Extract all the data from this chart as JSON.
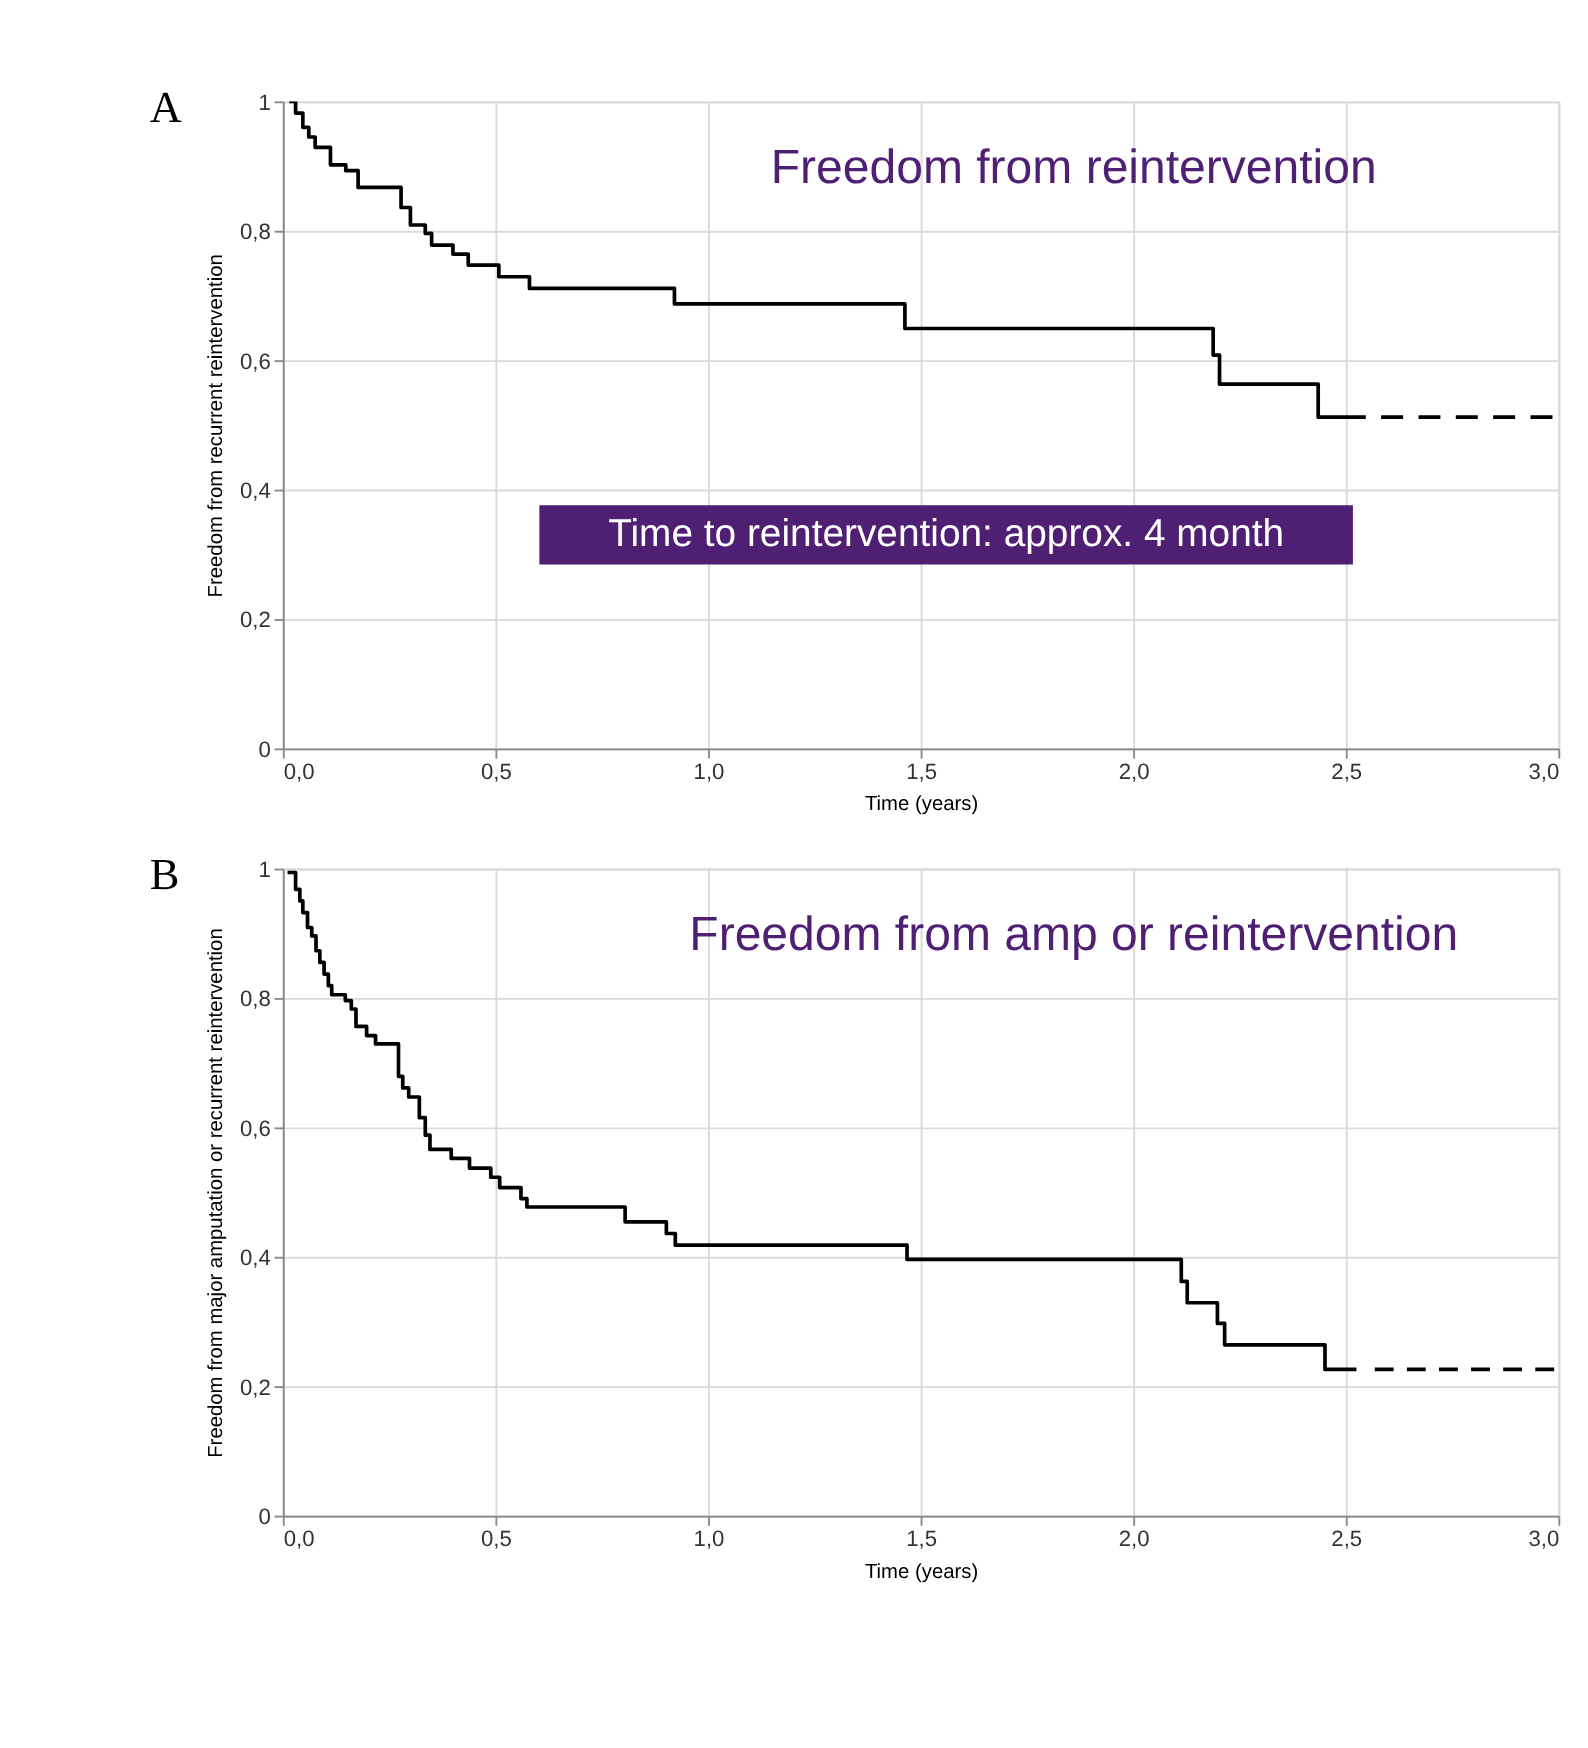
{
  "chart_data": [
    {
      "type": "step",
      "title": "Freedom from reintervention",
      "ylabel": "Freedom from recurrent reintervention",
      "xlabel": "Time (years)",
      "annotations": [
        "A",
        "Time to reintervention: approx. 4 month"
      ],
      "xlim": [
        0,
        3
      ],
      "xticks": [
        {
          "value": 0,
          "label": "0,0"
        },
        {
          "value": 0.5,
          "label": "0,5"
        },
        {
          "value": 1,
          "label": "1,0"
        },
        {
          "value": 1.5,
          "label": "1,5"
        },
        {
          "value": 2,
          "label": "2,0"
        },
        {
          "value": 2.5,
          "label": "2,5"
        },
        {
          "value": 3,
          "label": "3,0"
        }
      ],
      "ylim": [
        0,
        1
      ],
      "yticks": [
        0,
        {
          "value": 0.2,
          "label": "0,2"
        },
        {
          "value": 0.4,
          "label": "0,4"
        },
        {
          "value": 0.6,
          "label": "0,6"
        },
        {
          "value": 0.8,
          "label": "0,8"
        },
        1
      ],
      "grid": true,
      "series": [
        {
          "color": "#000000",
          "line_style": "solid",
          "x": [
            0.015,
            0.03,
            0.047,
            0.061,
            0.076,
            0.112,
            0.148,
            0.177,
            0.278,
            0.3,
            0.335,
            0.35,
            0.4,
            0.436,
            0.508,
            0.58,
            0.921,
            1.463,
            2.188,
            2.203,
            2.435,
            2.547
          ],
          "values": [
            1.0,
            0.982,
            0.96,
            0.945,
            0.929,
            0.902,
            0.893,
            0.867,
            0.836,
            0.809,
            0.796,
            0.778,
            0.764,
            0.747,
            0.729,
            0.711,
            0.687,
            0.649,
            0.608,
            0.563,
            0.512,
            0.512
          ]
        },
        {
          "color": "#000000",
          "line_style": "dashed",
          "x": [
            2.583,
            2.986
          ],
          "values": [
            0.512,
            0.512
          ]
        }
      ]
    },
    {
      "type": "step",
      "title": "Freedom from amp or reintervention",
      "ylabel": "Freedom from major amputation or recurrent reintervention",
      "xlabel": "Time (years)",
      "annotations": [
        "B"
      ],
      "xlim": [
        0,
        3
      ],
      "xticks": [
        {
          "value": 0,
          "label": "0,0"
        },
        {
          "value": 0.5,
          "label": "0,5"
        },
        {
          "value": 1,
          "label": "1,0"
        },
        {
          "value": 1.5,
          "label": "1,5"
        },
        {
          "value": 2,
          "label": "2,0"
        },
        {
          "value": 2.5,
          "label": "2,5"
        },
        {
          "value": 3,
          "label": "3,0"
        }
      ],
      "ylim": [
        0,
        1
      ],
      "yticks": [
        0,
        {
          "value": 0.2,
          "label": "0,2"
        },
        {
          "value": 0.4,
          "label": "0,4"
        },
        {
          "value": 0.6,
          "label": "0,6"
        },
        {
          "value": 0.8,
          "label": "0,8"
        },
        1
      ],
      "grid": true,
      "series": [
        {
          "color": "#000000",
          "line_style": "solid",
          "x": [
            0.011,
            0.03,
            0.04,
            0.047,
            0.058,
            0.068,
            0.078,
            0.087,
            0.097,
            0.107,
            0.115,
            0.147,
            0.161,
            0.172,
            0.197,
            0.218,
            0.272,
            0.282,
            0.296,
            0.321,
            0.335,
            0.346,
            0.396,
            0.439,
            0.489,
            0.51,
            0.56,
            0.574,
            0.805,
            0.902,
            0.923,
            1.468,
            2.113,
            2.127,
            2.198,
            2.215,
            2.451,
            2.525
          ],
          "values": [
            0.994,
            0.968,
            0.95,
            0.932,
            0.909,
            0.896,
            0.873,
            0.855,
            0.837,
            0.819,
            0.805,
            0.796,
            0.783,
            0.756,
            0.742,
            0.729,
            0.679,
            0.661,
            0.647,
            0.615,
            0.588,
            0.566,
            0.552,
            0.537,
            0.523,
            0.507,
            0.49,
            0.477,
            0.454,
            0.436,
            0.418,
            0.396,
            0.362,
            0.329,
            0.297,
            0.264,
            0.226,
            0.226
          ]
        },
        {
          "color": "#000000",
          "line_style": "dashed",
          "x": [
            2.568,
            2.99
          ],
          "values": [
            0.226,
            0.226
          ]
        }
      ]
    }
  ]
}
